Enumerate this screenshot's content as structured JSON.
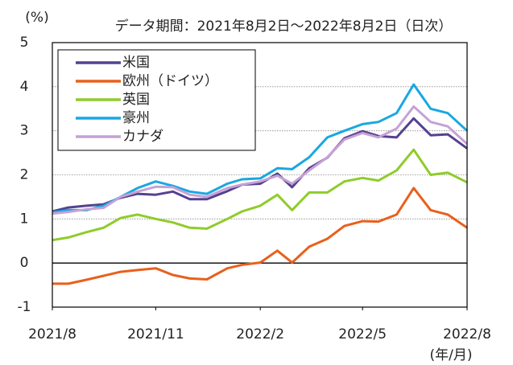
{
  "chart_data": {
    "type": "line",
    "subtitle": "データ期間：2021年8月2日～2022年8月2日（日次）",
    "y_label": "(%)",
    "x_label": "(年/月)",
    "x": [
      "2021-08-02",
      "2021-08-16",
      "2021-09-01",
      "2021-09-16",
      "2021-10-01",
      "2021-10-16",
      "2021-11-01",
      "2021-11-16",
      "2021-12-01",
      "2021-12-16",
      "2022-01-03",
      "2022-01-16",
      "2022-02-01",
      "2022-02-16",
      "2022-03-01",
      "2022-03-16",
      "2022-04-01",
      "2022-04-16",
      "2022-05-02",
      "2022-05-16",
      "2022-06-01",
      "2022-06-16",
      "2022-07-01",
      "2022-07-16",
      "2022-08-02"
    ],
    "series": [
      {
        "name": "米国",
        "color": "#55418f",
        "values": [
          1.17,
          1.26,
          1.3,
          1.33,
          1.48,
          1.57,
          1.55,
          1.62,
          1.45,
          1.45,
          1.63,
          1.78,
          1.8,
          2.03,
          1.72,
          2.15,
          2.39,
          2.83,
          2.99,
          2.88,
          2.85,
          3.28,
          2.9,
          2.92,
          2.6
        ]
      },
      {
        "name": "欧州（ドイツ）",
        "color": "#e8601c",
        "values": [
          -0.47,
          -0.47,
          -0.38,
          -0.29,
          -0.2,
          -0.16,
          -0.12,
          -0.27,
          -0.35,
          -0.37,
          -0.12,
          -0.04,
          0.01,
          0.28,
          0.01,
          0.37,
          0.55,
          0.84,
          0.95,
          0.94,
          1.1,
          1.7,
          1.2,
          1.1,
          0.8
        ]
      },
      {
        "name": "英国",
        "color": "#8fcc2a",
        "values": [
          0.52,
          0.58,
          0.7,
          0.8,
          1.02,
          1.1,
          1.0,
          0.92,
          0.8,
          0.78,
          1.0,
          1.17,
          1.3,
          1.55,
          1.2,
          1.6,
          1.6,
          1.85,
          1.93,
          1.87,
          2.1,
          2.57,
          2.0,
          2.05,
          1.83
        ]
      },
      {
        "name": "豪州",
        "color": "#19a8e0",
        "values": [
          1.15,
          1.2,
          1.2,
          1.3,
          1.5,
          1.7,
          1.85,
          1.75,
          1.62,
          1.57,
          1.8,
          1.9,
          1.92,
          2.15,
          2.13,
          2.4,
          2.85,
          3.0,
          3.15,
          3.2,
          3.4,
          4.05,
          3.5,
          3.4,
          3.0
        ]
      },
      {
        "name": "カナダ",
        "color": "#c6a1d6",
        "values": [
          1.12,
          1.16,
          1.22,
          1.25,
          1.5,
          1.62,
          1.73,
          1.72,
          1.55,
          1.5,
          1.7,
          1.78,
          1.85,
          1.98,
          1.8,
          2.1,
          2.4,
          2.8,
          2.95,
          2.85,
          3.05,
          3.55,
          3.2,
          3.1,
          2.7
        ]
      }
    ],
    "xlim": [
      "2021-08-02",
      "2022-08-02"
    ],
    "xticks": [
      {
        "value": "2021-08-02",
        "label": "2021/8"
      },
      {
        "value": "2021-11-01",
        "label": "2021/11"
      },
      {
        "value": "2022-02-01",
        "label": "2022/2"
      },
      {
        "value": "2022-05-02",
        "label": "2022/5"
      },
      {
        "value": "2022-08-02",
        "label": "2022/8"
      }
    ],
    "ylim": [
      -1,
      5
    ],
    "yticks": [
      -1,
      0,
      1,
      2,
      3,
      4,
      5
    ],
    "negative_tick_color": "#e00000",
    "grid": true,
    "legend": "upper-left"
  }
}
